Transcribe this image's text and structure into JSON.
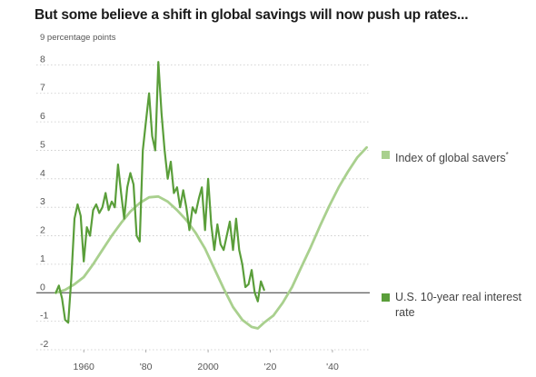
{
  "chart_data": {
    "type": "line",
    "title": "But some believe a shift in global savings will now push up rates...",
    "y_unit_label": "9 percentage points",
    "ylim": [
      -2,
      9
    ],
    "xlim": [
      1950,
      2052
    ],
    "y_ticks": [
      -2,
      -1,
      0,
      1,
      2,
      3,
      4,
      5,
      6,
      7,
      8
    ],
    "x_ticks": [
      {
        "value": 1960,
        "label": "1960"
      },
      {
        "value": 1980,
        "label": "'80"
      },
      {
        "value": 2000,
        "label": "2000"
      },
      {
        "value": 2020,
        "label": "'20"
      },
      {
        "value": 2040,
        "label": "'40"
      }
    ],
    "grid": "horizontal-dotted",
    "series": [
      {
        "name": "Index of global savers",
        "footnote": "*",
        "color": "#a9d08e",
        "points": [
          [
            1951,
            0.0
          ],
          [
            1954,
            0.1
          ],
          [
            1957,
            0.3
          ],
          [
            1960,
            0.55
          ],
          [
            1963,
            1.0
          ],
          [
            1966,
            1.5
          ],
          [
            1969,
            2.0
          ],
          [
            1972,
            2.45
          ],
          [
            1975,
            2.85
          ],
          [
            1978,
            3.15
          ],
          [
            1981,
            3.35
          ],
          [
            1984,
            3.38
          ],
          [
            1987,
            3.2
          ],
          [
            1990,
            2.9
          ],
          [
            1993,
            2.55
          ],
          [
            1996,
            2.1
          ],
          [
            1999,
            1.55
          ],
          [
            2002,
            0.85
          ],
          [
            2005,
            0.15
          ],
          [
            2008,
            -0.5
          ],
          [
            2011,
            -0.95
          ],
          [
            2014,
            -1.2
          ],
          [
            2016,
            -1.25
          ],
          [
            2018,
            -1.05
          ],
          [
            2021,
            -0.8
          ],
          [
            2024,
            -0.35
          ],
          [
            2027,
            0.2
          ],
          [
            2030,
            0.9
          ],
          [
            2033,
            1.6
          ],
          [
            2036,
            2.35
          ],
          [
            2039,
            3.05
          ],
          [
            2042,
            3.7
          ],
          [
            2045,
            4.25
          ],
          [
            2048,
            4.75
          ],
          [
            2051,
            5.1
          ]
        ]
      },
      {
        "name": "U.S. 10-year real interest rate",
        "color": "#5a9e3a",
        "points": [
          [
            1951,
            0.0
          ],
          [
            1952,
            0.25
          ],
          [
            1953,
            -0.2
          ],
          [
            1954,
            -0.95
          ],
          [
            1955,
            -1.05
          ],
          [
            1956,
            0.5
          ],
          [
            1957,
            2.6
          ],
          [
            1958,
            3.1
          ],
          [
            1959,
            2.7
          ],
          [
            1960,
            1.1
          ],
          [
            1961,
            2.3
          ],
          [
            1962,
            2.0
          ],
          [
            1963,
            2.9
          ],
          [
            1964,
            3.1
          ],
          [
            1965,
            2.8
          ],
          [
            1966,
            3.0
          ],
          [
            1967,
            3.5
          ],
          [
            1968,
            2.9
          ],
          [
            1969,
            3.2
          ],
          [
            1970,
            3.0
          ],
          [
            1971,
            4.5
          ],
          [
            1972,
            3.5
          ],
          [
            1973,
            2.6
          ],
          [
            1974,
            3.7
          ],
          [
            1975,
            4.2
          ],
          [
            1976,
            3.8
          ],
          [
            1977,
            2.0
          ],
          [
            1978,
            1.8
          ],
          [
            1979,
            5.0
          ],
          [
            1980,
            6.0
          ],
          [
            1981,
            7.0
          ],
          [
            1982,
            5.5
          ],
          [
            1983,
            5.0
          ],
          [
            1984,
            8.1
          ],
          [
            1985,
            6.3
          ],
          [
            1986,
            5.0
          ],
          [
            1987,
            4.0
          ],
          [
            1988,
            4.6
          ],
          [
            1989,
            3.5
          ],
          [
            1990,
            3.7
          ],
          [
            1991,
            3.0
          ],
          [
            1992,
            3.6
          ],
          [
            1993,
            3.0
          ],
          [
            1994,
            2.2
          ],
          [
            1995,
            3.0
          ],
          [
            1996,
            2.8
          ],
          [
            1997,
            3.3
          ],
          [
            1998,
            3.7
          ],
          [
            1999,
            2.2
          ],
          [
            2000,
            4.0
          ],
          [
            2001,
            2.4
          ],
          [
            2002,
            1.5
          ],
          [
            2003,
            2.4
          ],
          [
            2004,
            1.7
          ],
          [
            2005,
            1.5
          ],
          [
            2006,
            2.0
          ],
          [
            2007,
            2.5
          ],
          [
            2008,
            1.5
          ],
          [
            2009,
            2.6
          ],
          [
            2010,
            1.5
          ],
          [
            2011,
            1.0
          ],
          [
            2012,
            0.2
          ],
          [
            2013,
            0.3
          ],
          [
            2014,
            0.8
          ],
          [
            2015,
            0.0
          ],
          [
            2016,
            -0.3
          ],
          [
            2017,
            0.4
          ],
          [
            2018,
            0.1
          ]
        ]
      }
    ],
    "legend": [
      {
        "label": "Index of global savers",
        "footnote": "*",
        "color": "#a9d08e"
      },
      {
        "label": "U.S. 10-year real interest rate",
        "color": "#5a9e3a"
      }
    ]
  }
}
